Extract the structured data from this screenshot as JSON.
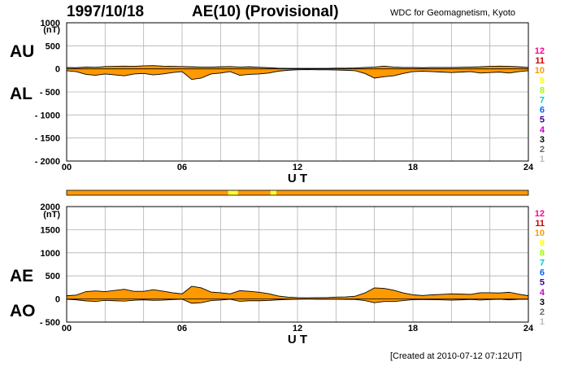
{
  "header": {
    "date": "1997/10/18",
    "title": "AE(10) (Provisional)",
    "source": "WDC for Geomagnetism, Kyoto"
  },
  "footer": {
    "created": "[Created at 2010-07-12 07:12UT]"
  },
  "colors": {
    "fill": "#ff9900",
    "stationHighlight": "#ffff33",
    "grid": "#b0b0b0"
  },
  "station_scale": {
    "labels": [
      "12",
      "11",
      "10",
      "9",
      "8",
      "7",
      "6",
      "5",
      "4",
      "3",
      "2",
      "1"
    ],
    "colors": [
      "#ff0099",
      "#cc0000",
      "#ff9900",
      "#ffff00",
      "#99ff00",
      "#00cccc",
      "#0066ff",
      "#330099",
      "#cc00cc",
      "#000000",
      "#666666",
      "#bbbbbb"
    ]
  },
  "chart_data": [
    {
      "type": "area",
      "name": "AU/AL panel",
      "left_labels": [
        "AU",
        "AL"
      ],
      "ylabel": "(nT)",
      "ylim": [
        -2000,
        1000
      ],
      "yticks": [
        1000,
        500,
        0,
        -500,
        -1000,
        -1500,
        -2000
      ],
      "xlabel": "U T",
      "xlim": [
        0,
        24
      ],
      "xticks": [
        "00",
        "06",
        "12",
        "18",
        "24"
      ],
      "grid": true,
      "series": [
        {
          "name": "AU",
          "x": [
            0,
            0.5,
            1,
            1.5,
            2,
            2.5,
            3,
            3.5,
            4,
            4.5,
            5,
            5.5,
            6,
            6.5,
            7,
            7.5,
            8,
            8.5,
            9,
            9.5,
            10,
            10.5,
            11,
            11.5,
            12,
            12.5,
            13,
            13.5,
            14,
            14.5,
            15,
            15.5,
            16,
            16.5,
            17,
            17.5,
            18,
            18.5,
            19,
            19.5,
            20,
            20.5,
            21,
            21.5,
            22,
            22.5,
            23,
            23.5,
            24
          ],
          "values": [
            30,
            25,
            40,
            35,
            50,
            55,
            60,
            55,
            65,
            70,
            60,
            55,
            50,
            45,
            40,
            40,
            45,
            50,
            40,
            45,
            35,
            25,
            15,
            10,
            10,
            10,
            10,
            10,
            15,
            15,
            20,
            30,
            40,
            60,
            40,
            30,
            30,
            25,
            30,
            30,
            30,
            35,
            40,
            45,
            55,
            60,
            55,
            45,
            30
          ]
        },
        {
          "name": "AL",
          "x": [
            0,
            0.5,
            1,
            1.5,
            2,
            2.5,
            3,
            3.5,
            4,
            4.5,
            5,
            5.5,
            6,
            6.5,
            7,
            7.5,
            8,
            8.5,
            9,
            9.5,
            10,
            10.5,
            11,
            11.5,
            12,
            12.5,
            13,
            13.5,
            14,
            14.5,
            15,
            15.5,
            16,
            16.5,
            17,
            17.5,
            18,
            18.5,
            19,
            19.5,
            20,
            20.5,
            21,
            21.5,
            22,
            22.5,
            23,
            23.5,
            24
          ],
          "values": [
            -40,
            -60,
            -120,
            -140,
            -110,
            -130,
            -150,
            -110,
            -100,
            -130,
            -110,
            -80,
            -60,
            -230,
            -200,
            -110,
            -90,
            -60,
            -140,
            -120,
            -110,
            -90,
            -50,
            -30,
            -20,
            -15,
            -20,
            -20,
            -25,
            -30,
            -40,
            -100,
            -200,
            -170,
            -150,
            -100,
            -60,
            -50,
            -60,
            -70,
            -80,
            -70,
            -60,
            -90,
            -80,
            -70,
            -90,
            -60,
            -40
          ]
        }
      ]
    },
    {
      "type": "area",
      "name": "AE/AO panel",
      "left_labels": [
        "AE",
        "AO"
      ],
      "ylabel": "(nT)",
      "ylim": [
        -500,
        2000
      ],
      "yticks": [
        2000,
        1500,
        1000,
        500,
        0,
        -500
      ],
      "xlabel": "U T",
      "xlim": [
        0,
        24
      ],
      "xticks": [
        "00",
        "06",
        "12",
        "18",
        "24"
      ],
      "grid": true,
      "series": [
        {
          "name": "AE",
          "x": [
            0,
            0.5,
            1,
            1.5,
            2,
            2.5,
            3,
            3.5,
            4,
            4.5,
            5,
            5.5,
            6,
            6.5,
            7,
            7.5,
            8,
            8.5,
            9,
            9.5,
            10,
            10.5,
            11,
            11.5,
            12,
            12.5,
            13,
            13.5,
            14,
            14.5,
            15,
            15.5,
            16,
            16.5,
            17,
            17.5,
            18,
            18.5,
            19,
            19.5,
            20,
            20.5,
            21,
            21.5,
            22,
            22.5,
            23,
            23.5,
            24
          ],
          "values": [
            70,
            85,
            160,
            175,
            160,
            185,
            210,
            165,
            165,
            200,
            170,
            135,
            110,
            275,
            240,
            150,
            135,
            110,
            180,
            165,
            145,
            115,
            65,
            40,
            30,
            25,
            30,
            30,
            40,
            45,
            60,
            130,
            240,
            230,
            190,
            130,
            90,
            75,
            90,
            100,
            110,
            105,
            100,
            135,
            135,
            130,
            145,
            105,
            70
          ]
        },
        {
          "name": "AO",
          "x": [
            0,
            0.5,
            1,
            1.5,
            2,
            2.5,
            3,
            3.5,
            4,
            4.5,
            5,
            5.5,
            6,
            6.5,
            7,
            7.5,
            8,
            8.5,
            9,
            9.5,
            10,
            10.5,
            11,
            11.5,
            12,
            12.5,
            13,
            13.5,
            14,
            14.5,
            15,
            15.5,
            16,
            16.5,
            17,
            17.5,
            18,
            18.5,
            19,
            19.5,
            20,
            20.5,
            21,
            21.5,
            22,
            22.5,
            23,
            23.5,
            24
          ],
          "values": [
            -5,
            -18,
            -40,
            -53,
            -30,
            -38,
            -45,
            -28,
            -18,
            -30,
            -25,
            -13,
            -5,
            -93,
            -80,
            -35,
            -23,
            -5,
            -50,
            -38,
            -38,
            -33,
            -18,
            -10,
            -5,
            -3,
            -5,
            -5,
            -5,
            -8,
            -10,
            -35,
            -80,
            -55,
            -55,
            -35,
            -15,
            -13,
            -15,
            -20,
            -25,
            -18,
            -10,
            -23,
            -13,
            -5,
            -18,
            -8,
            -5
          ]
        }
      ]
    }
  ],
  "station_bar": {
    "xlim": [
      0,
      24
    ],
    "segments": [
      {
        "x0": 0,
        "x1": 8.4,
        "count": 10
      },
      {
        "x0": 8.4,
        "x1": 8.9,
        "count": 9
      },
      {
        "x0": 8.9,
        "x1": 10.6,
        "count": 10
      },
      {
        "x0": 10.6,
        "x1": 10.9,
        "count": 9
      },
      {
        "x0": 10.9,
        "x1": 24,
        "count": 10
      }
    ]
  }
}
